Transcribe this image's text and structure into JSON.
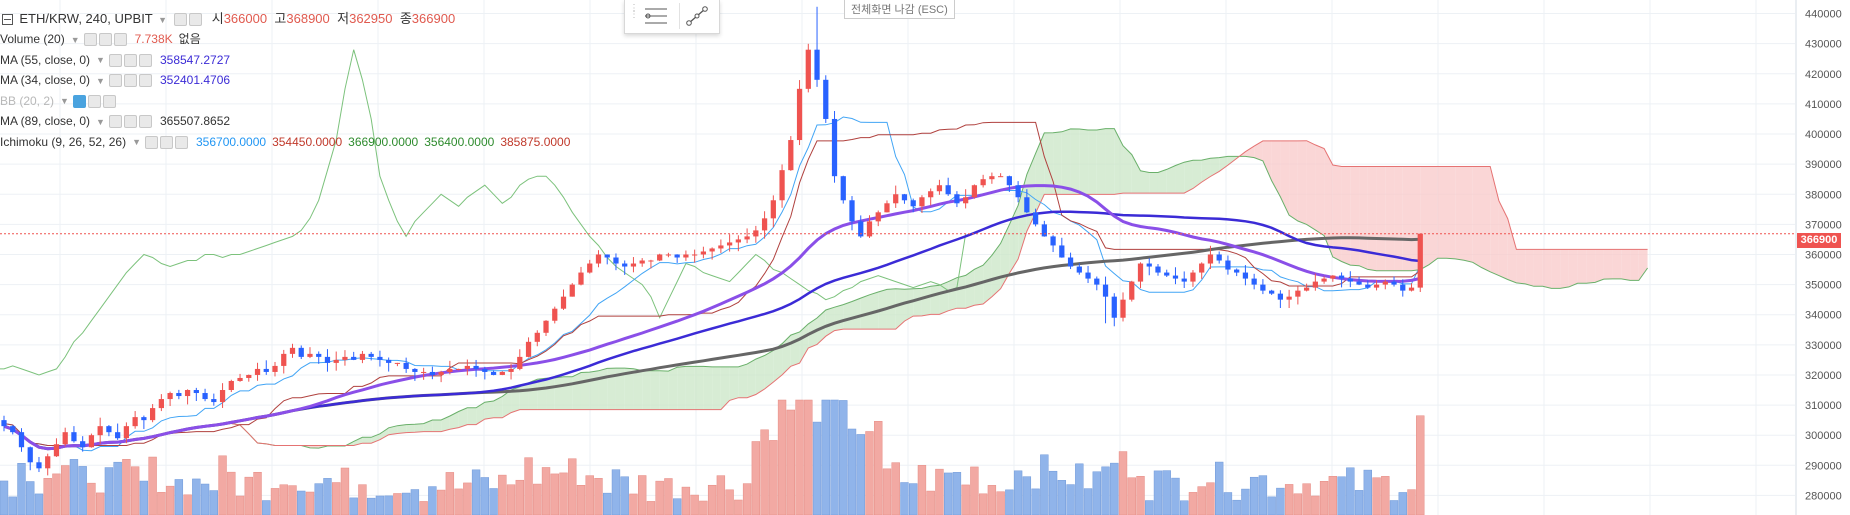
{
  "header": {
    "symbol": "ETH/KRW, 240, UPBIT",
    "open_label": "시",
    "open": "366000",
    "high_label": "고",
    "high": "368900",
    "low_label": "저",
    "low": "362950",
    "close_label": "종",
    "close": "366900"
  },
  "indicators": [
    {
      "name": "Volume (20)",
      "values": [
        "7.738K",
        "없음"
      ],
      "colors": [
        "#e05a4f",
        "#333333"
      ]
    },
    {
      "name": "MA (55, close, 0)",
      "values": [
        "358547.2727"
      ],
      "colors": [
        "#3b2bd6"
      ]
    },
    {
      "name": "MA (34, close, 0)",
      "values": [
        "352401.4706"
      ],
      "colors": [
        "#3b2bd6"
      ]
    },
    {
      "name": "BB (20, 2)",
      "values": [],
      "colors": [],
      "muted": true
    },
    {
      "name": "MA (89, close, 0)",
      "values": [
        "365507.8652"
      ],
      "colors": [
        "#333333"
      ]
    },
    {
      "name": "Ichimoku (9, 26, 52, 26)",
      "values": [
        "356700.0000",
        "354450.0000",
        "366900.0000",
        "356400.0000",
        "385875.0000"
      ],
      "colors": [
        "#2196f3",
        "#c0392b",
        "#2e8b2e",
        "#2e8b2e",
        "#c0392b"
      ]
    }
  ],
  "escape_hint": "전체화면 나감 (ESC)",
  "last_price_label": "366900",
  "colors": {
    "up": "#ef5350",
    "down": "#2962ff",
    "vol_up": "#f2a9a3",
    "vol_down": "#90b4ea",
    "ma55": "#8a4fe8",
    "ma34": "#3b2bd6",
    "ma89": "#666666",
    "kumo_red": "#f8c8c8",
    "kumo_green": "#c9e6c6"
  },
  "chart_data": {
    "type": "candlestick",
    "symbol": "ETH/KRW",
    "interval": "240",
    "exchange": "UPBIT",
    "y_axis": {
      "ticks": [
        280000,
        290000,
        300000,
        310000,
        320000,
        330000,
        340000,
        350000,
        360000,
        370000,
        380000,
        390000,
        400000,
        410000,
        420000,
        430000,
        440000
      ],
      "tick_labels": [
        "280000",
        "290000",
        "300000",
        "310000",
        "320000",
        "330000",
        "340000",
        "350000",
        "360000",
        "370000",
        "380000",
        "390000",
        "400000",
        "410000",
        "420000",
        "430000",
        "440000"
      ],
      "range": [
        273500,
        444500
      ]
    },
    "last_price": 366900,
    "grid": true,
    "closes": [
      303000,
      301000,
      296000,
      291000,
      289000,
      293000,
      297000,
      301000,
      298000,
      296000,
      300000,
      303000,
      301000,
      299000,
      303000,
      306000,
      305000,
      309000,
      312000,
      314000,
      313000,
      315000,
      314000,
      312000,
      311000,
      315000,
      318000,
      319000,
      320000,
      322000,
      321000,
      323000,
      327000,
      329000,
      326000,
      327000,
      326000,
      324000,
      325000,
      326000,
      325000,
      327000,
      326000,
      325000,
      324000,
      324000,
      322000,
      321000,
      321000,
      320000,
      321000,
      322000,
      322000,
      323000,
      322000,
      321000,
      320000,
      321000,
      322000,
      326000,
      331000,
      334000,
      338000,
      342000,
      346000,
      350000,
      354000,
      357000,
      360000,
      359000,
      357000,
      356000,
      357000,
      358000,
      358000,
      360000,
      360000,
      359000,
      360000,
      360000,
      361000,
      362000,
      363000,
      364000,
      365000,
      366000,
      368000,
      372000,
      378000,
      388000,
      398000,
      415000,
      428000,
      418000,
      405000,
      386000,
      378000,
      371000,
      366000,
      371000,
      374000,
      377000,
      380000,
      378000,
      376000,
      379000,
      381000,
      383000,
      380000,
      377000,
      379000,
      383000,
      385000,
      386000,
      386000,
      383000,
      379000,
      374000,
      370000,
      366000,
      363000,
      359000,
      356000,
      354000,
      352000,
      350000,
      346000,
      339000,
      345000,
      351000,
      357000,
      356000,
      354000,
      353000,
      352000,
      351000,
      354000,
      357000,
      360000,
      358000,
      355000,
      354000,
      352000,
      350000,
      348000,
      347000,
      345000,
      346000,
      348000,
      349000,
      351000,
      352000,
      353000,
      352000,
      351000,
      350000,
      349000,
      350000,
      351000,
      350000,
      348000,
      349000,
      366900
    ],
    "series": [
      {
        "name": "MA (55, close, 0)",
        "last": 358547.2727
      },
      {
        "name": "MA (34, close, 0)",
        "last": 352401.4706
      },
      {
        "name": "MA (89, close, 0)",
        "last": 365507.8652
      },
      {
        "name": "Ichimoku (9, 26, 52, 26)",
        "values": [
          356700,
          354450,
          366900,
          356400,
          385875
        ]
      }
    ],
    "volume_last": "7.738K"
  }
}
